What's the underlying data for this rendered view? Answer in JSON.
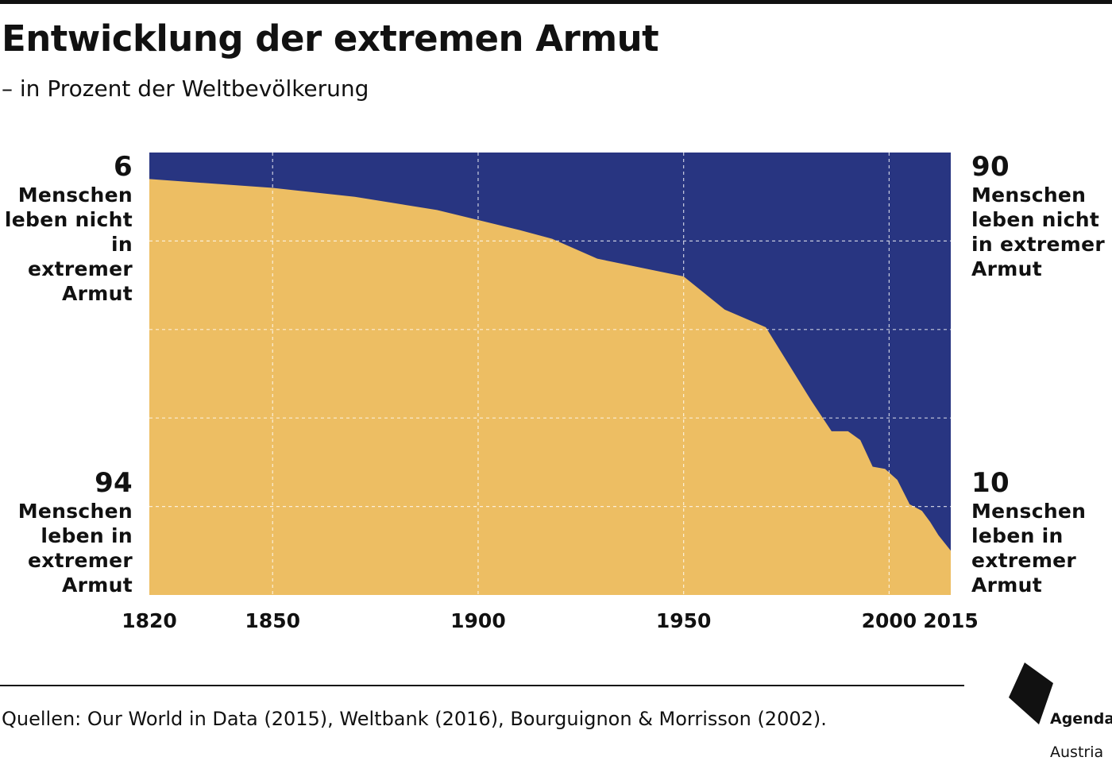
{
  "header": {
    "title": "Entwicklung der extremen Armut",
    "subtitle": "– in Prozent der Weltbevölkerung"
  },
  "annotations": {
    "left_top": {
      "value": "6",
      "text": "Menschen\nleben nicht\nin extremer\nArmut"
    },
    "left_bottom": {
      "value": "94",
      "text": "Menschen\nleben in\nextremer\nArmut"
    },
    "right_top": {
      "value": "90",
      "text": "Menschen\nleben nicht\nin extremer\nArmut"
    },
    "right_bottom": {
      "value": "10",
      "text": "Menschen\nleben in\nextremer\nArmut"
    }
  },
  "footer": {
    "source": "Quellen: Our World in Data (2015), Weltbank (2016), Bourguignon & Morrisson (2002).",
    "logo_line1": "Agenda",
    "logo_line2": "Austria"
  },
  "chart_data": {
    "type": "area",
    "x_ticks": [
      "1820",
      "1850",
      "1900",
      "1950",
      "2000",
      "2015"
    ],
    "xlim": [
      1820,
      2015
    ],
    "ylim": [
      0,
      100
    ],
    "stacked": true,
    "grid": true,
    "series": [
      {
        "name": "Menschen leben in extremer Armut",
        "color": "#EDBE63",
        "points": [
          [
            1820,
            94
          ],
          [
            1850,
            92
          ],
          [
            1870,
            90
          ],
          [
            1890,
            87
          ],
          [
            1910,
            82.5
          ],
          [
            1918,
            80.5
          ],
          [
            1929,
            76
          ],
          [
            1950,
            72
          ],
          [
            1960,
            64.5
          ],
          [
            1970,
            60.5
          ],
          [
            1981,
            44
          ],
          [
            1986,
            37
          ],
          [
            1990,
            37
          ],
          [
            1993,
            35
          ],
          [
            1996,
            29
          ],
          [
            1999,
            28.5
          ],
          [
            2002,
            26
          ],
          [
            2005,
            20.5
          ],
          [
            2008,
            19
          ],
          [
            2010,
            16.5
          ],
          [
            2012,
            13.5
          ],
          [
            2015,
            10
          ]
        ]
      },
      {
        "name": "Menschen leben nicht in extremer Armut",
        "color": "#283581"
      }
    ]
  }
}
